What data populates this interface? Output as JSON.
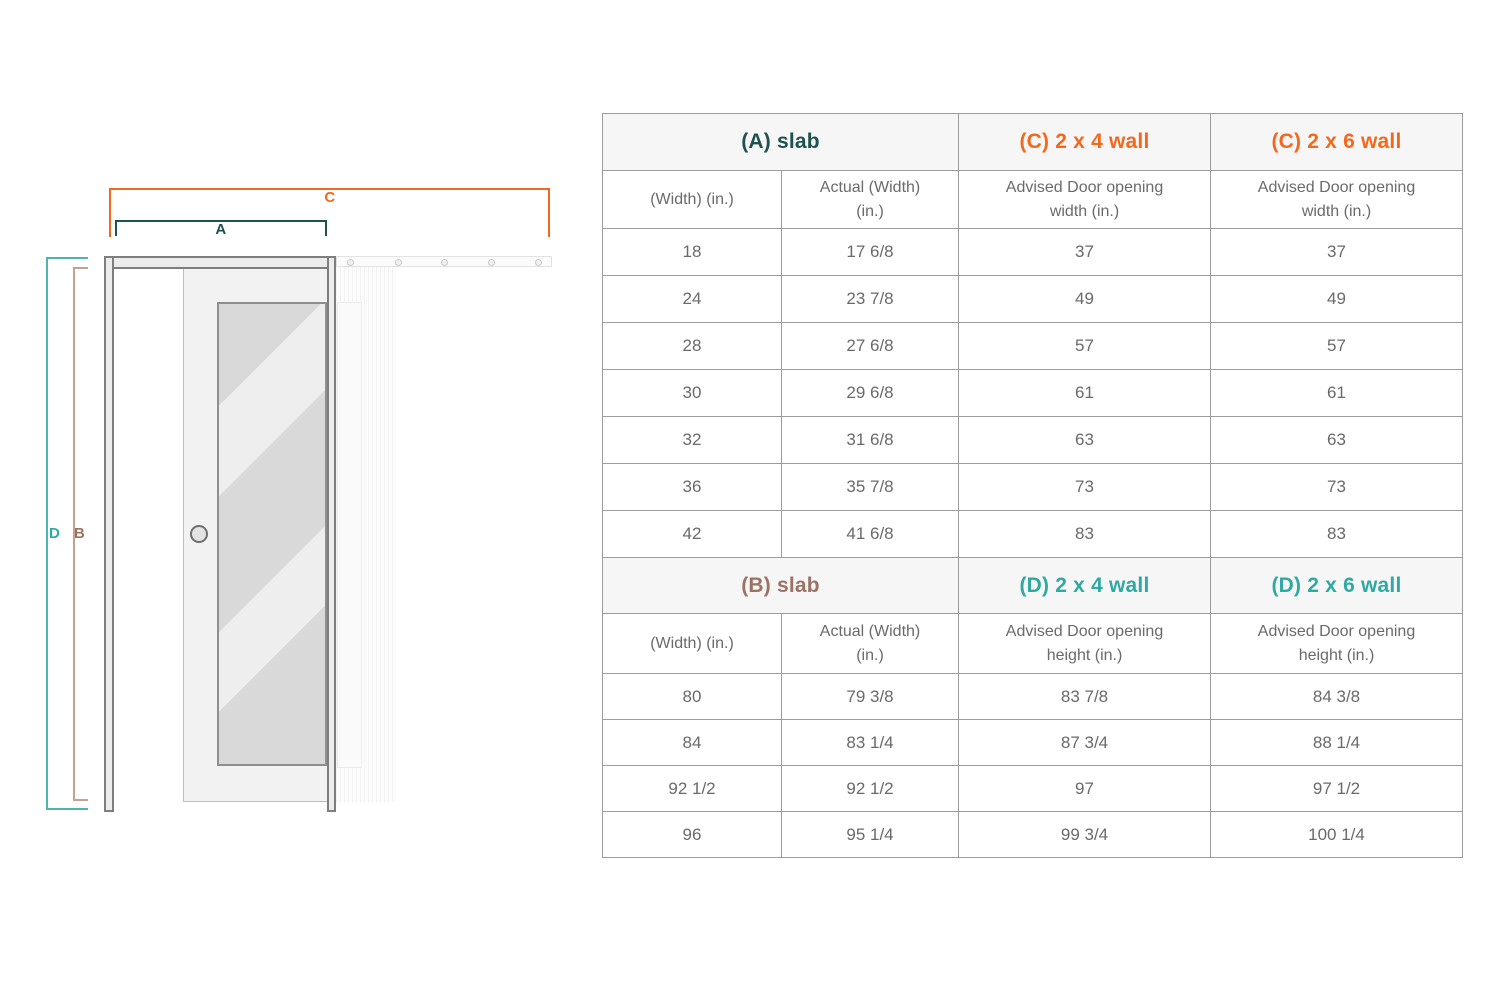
{
  "diagram": {
    "labels": {
      "a": "A",
      "b": "B",
      "c": "C",
      "d": "D"
    },
    "colors": {
      "a": "#1d524f",
      "b": "#9b7365",
      "c": "#f2691e",
      "d": "#2fa9a2",
      "b_line": "#c3a193",
      "d_line": "#4db4ae"
    }
  },
  "table": {
    "sections": [
      {
        "headers": [
          {
            "text": "(A) slab",
            "color": "#1d524f"
          },
          {
            "text": "(C) 2 x 4 wall",
            "color": "#f2691e"
          },
          {
            "text": "(C) 2 x 6 wall",
            "color": "#f2691e"
          }
        ],
        "col_headers": [
          "(Width) (in.)",
          "Actual (Width) (in.)",
          "Advised Door opening width (in.)",
          "Advised Door opening width (in.)"
        ],
        "rows": [
          [
            "18",
            "17 6/8",
            "37",
            "37"
          ],
          [
            "24",
            "23 7/8",
            "49",
            "49"
          ],
          [
            "28",
            "27 6/8",
            "57",
            "57"
          ],
          [
            "30",
            "29 6/8",
            "61",
            "61"
          ],
          [
            "32",
            "31 6/8",
            "63",
            "63"
          ],
          [
            "36",
            "35 7/8",
            "73",
            "73"
          ],
          [
            "42",
            "41 6/8",
            "83",
            "83"
          ]
        ]
      },
      {
        "headers": [
          {
            "text": "(B) slab",
            "color": "#9b7365"
          },
          {
            "text": "(D) 2 x 4 wall",
            "color": "#2fa9a2"
          },
          {
            "text": "(D) 2 x 6 wall",
            "color": "#2fa9a2"
          }
        ],
        "col_headers": [
          "(Width) (in.)",
          "Actual (Width) (in.)",
          "Advised Door opening height (in.)",
          "Advised Door opening height (in.)"
        ],
        "rows": [
          [
            "80",
            "79 3/8",
            "83 7/8",
            "84 3/8"
          ],
          [
            "84",
            "83 1/4",
            "87 3/4",
            "88 1/4"
          ],
          [
            "92 1/2",
            "92 1/2",
            "97",
            "97 1/2"
          ],
          [
            "96",
            "95 1/4",
            "99 3/4",
            "100 1/4"
          ]
        ]
      }
    ]
  }
}
